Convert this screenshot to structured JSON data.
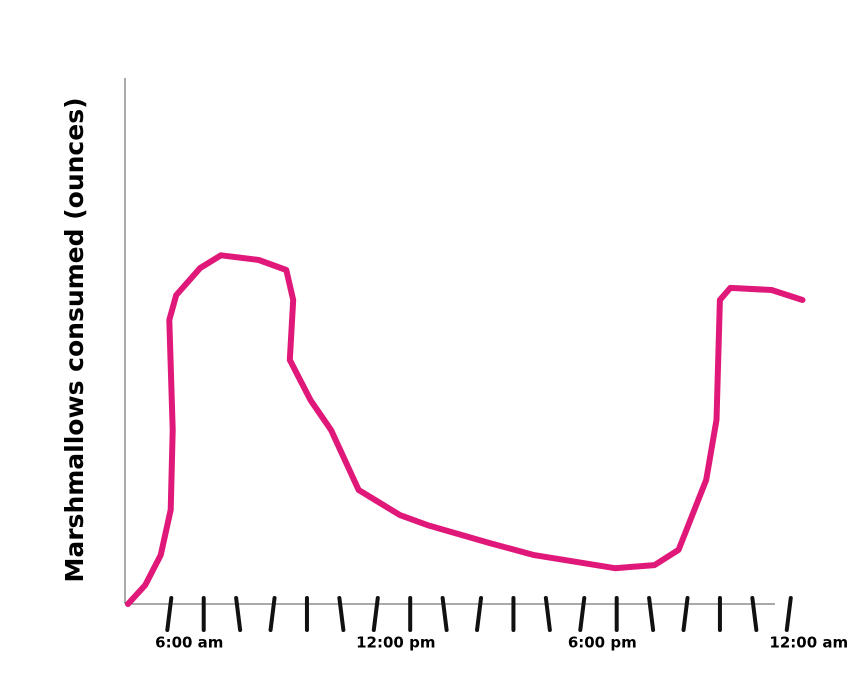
{
  "chart_data": {
    "type": "line",
    "y_label": "Marshmallows consumed (ounces)",
    "x": [
      4.8,
      5.3,
      5.75,
      6.04,
      6.1,
      6.0,
      6.2,
      6.9,
      7.5,
      8.6,
      9.4,
      9.6,
      9.5,
      10.1,
      10.7,
      11.5,
      12.7,
      13.5,
      15.3,
      16.6,
      18.95,
      20.1,
      20.8,
      21.6,
      21.9,
      22.0,
      22.3,
      23.5,
      24.4
    ],
    "series": [
      {
        "color": "#e0187a",
        "values": [
          0,
          0.36,
          0.93,
          1.79,
          3.31,
          5.4,
          5.87,
          6.39,
          6.63,
          6.54,
          6.35,
          5.78,
          4.64,
          3.88,
          3.31,
          2.17,
          1.69,
          1.5,
          1.16,
          0.93,
          0.68,
          0.74,
          1.03,
          2.36,
          3.5,
          5.78,
          6.01,
          5.97,
          5.78
        ]
      }
    ],
    "xlim": [
      4.8,
      23.6
    ],
    "ylim": [
      0,
      10
    ],
    "xticks": [
      {
        "value": 6,
        "label": "6:00 am"
      },
      {
        "value": 12,
        "label": "12:00 pm"
      },
      {
        "value": 18,
        "label": "6:00 pm"
      },
      {
        "value": 24,
        "label": "12:00 am"
      }
    ],
    "xminor_ticks": [
      6,
      7,
      8,
      9,
      10,
      11,
      12,
      13,
      14,
      15,
      16,
      17,
      18,
      19,
      20,
      21,
      22,
      23,
      24
    ]
  }
}
